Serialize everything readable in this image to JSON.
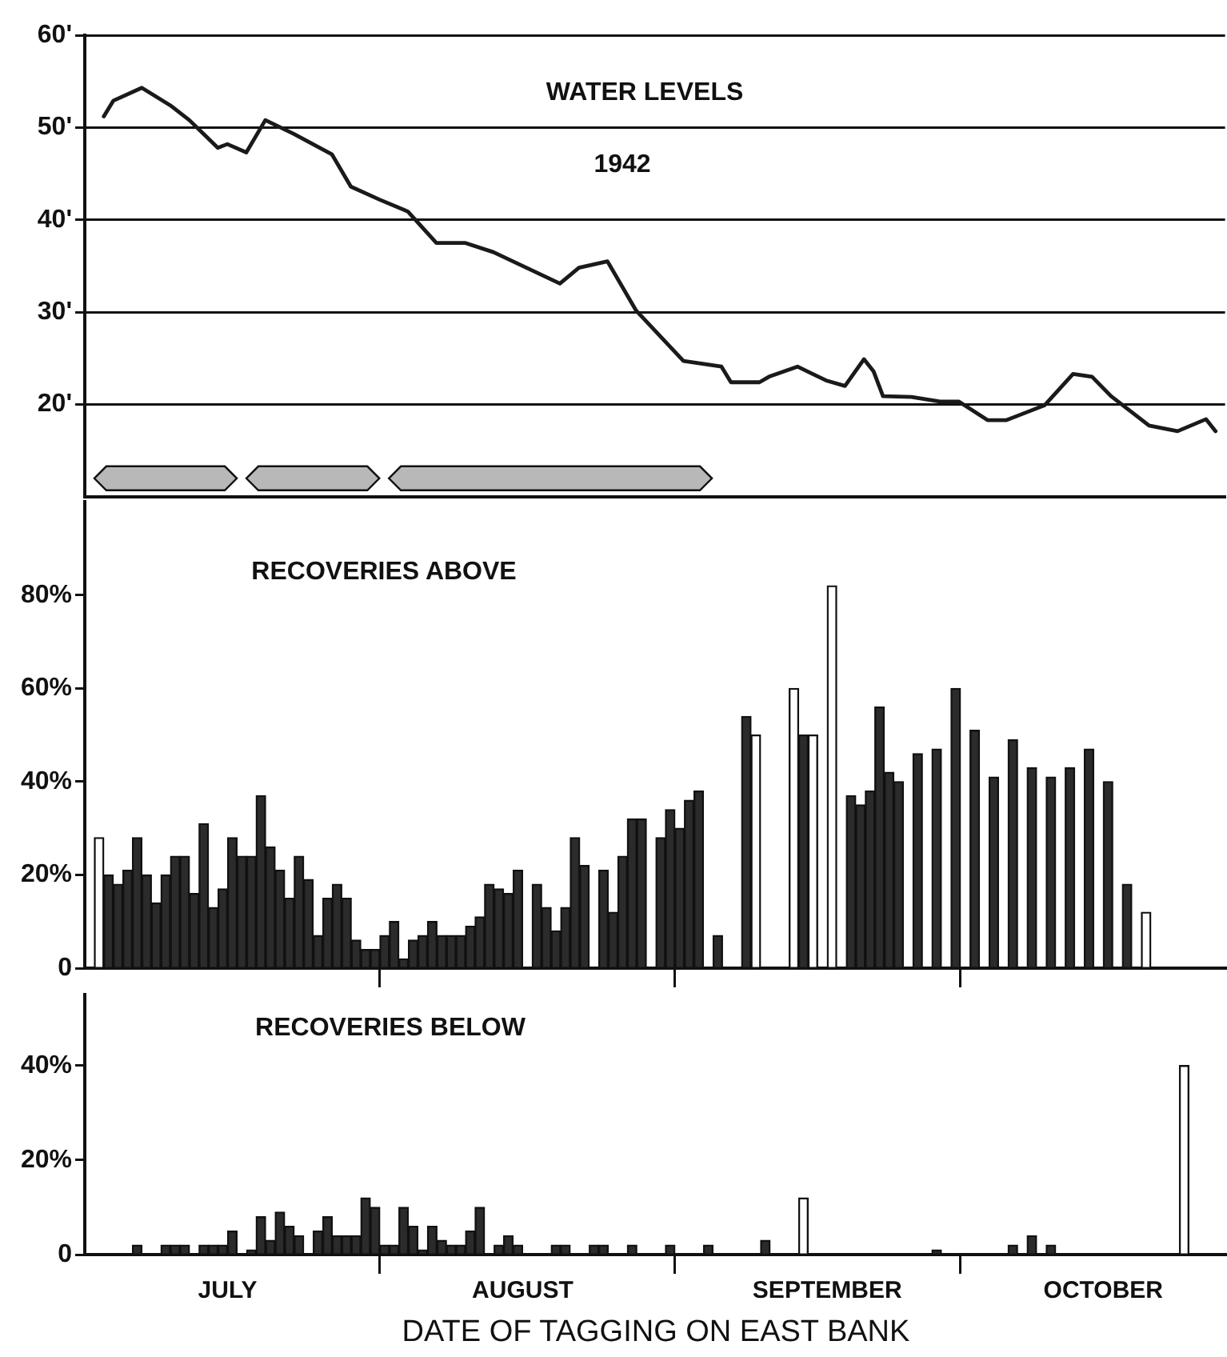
{
  "chart_data": [
    {
      "type": "line",
      "title": "WATER LEVELS",
      "subtitle": "1942",
      "xlim": [
        "--07-01",
        "--10-29"
      ],
      "ylim": [
        10,
        60
      ],
      "yticks": [
        {
          "value": 20,
          "label": "20'"
        },
        {
          "value": 30,
          "label": "30'"
        },
        {
          "value": 40,
          "label": "40'"
        },
        {
          "value": 50,
          "label": "50'"
        },
        {
          "value": 60,
          "label": "60'"
        }
      ],
      "grid": "y",
      "tick_labels": "y",
      "bands": [
        {
          "axis": "x",
          "from": "--07-02",
          "to": "--07-17",
          "color": "#b8b8b8"
        },
        {
          "axis": "x",
          "from": "--07-18",
          "to": "--08-01",
          "color": "#b8b8b8"
        },
        {
          "axis": "x",
          "from": "--08-02",
          "to": "--09-05",
          "color": "#b8b8b8"
        }
      ],
      "series": [
        {
          "color": "#1a1a1a",
          "x": [
            "--07-03",
            "--07-04",
            "--07-07",
            "--07-10",
            "--07-12",
            "--07-15",
            "--07-16",
            "--07-18",
            "--07-20",
            "--07-23",
            "--07-27",
            "--07-29",
            "--08-01",
            "--08-04",
            "--08-07",
            "--08-10",
            "--08-13",
            "--08-20",
            "--08-22",
            "--08-25",
            "--08-28",
            "--09-02",
            "--09-06",
            "--09-07",
            "--09-10",
            "--09-11",
            "--09-14",
            "--09-17",
            "--09-19",
            "--09-21",
            "--09-22",
            "--09-23",
            "--09-26",
            "--09-29",
            "--10-01",
            "--10-04",
            "--10-06",
            "--10-10",
            "--10-13",
            "--10-15",
            "--10-17",
            "--10-21",
            "--10-24",
            "--10-27",
            "--10-28"
          ],
          "values": [
            51.2,
            52.9,
            54.3,
            52.4,
            50.8,
            47.8,
            48.2,
            47.3,
            50.8,
            49.3,
            47.1,
            43.6,
            42.2,
            40.9,
            37.5,
            37.5,
            36.5,
            33.1,
            34.8,
            35.5,
            30.2,
            24.7,
            24.1,
            22.4,
            22.4,
            23.0,
            24.1,
            22.6,
            22.0,
            24.9,
            23.6,
            20.9,
            20.8,
            20.3,
            20.3,
            18.3,
            18.3,
            19.9,
            23.3,
            23.0,
            20.9,
            17.7,
            17.1,
            18.4,
            17.1
          ]
        }
      ]
    },
    {
      "type": "bar",
      "title": "RECOVERIES ABOVE",
      "xlim": [
        "--07-01",
        "--10-29"
      ],
      "ylim": [
        0,
        100
      ],
      "yticks": [
        0,
        {
          "value": 20,
          "label": "20%"
        },
        {
          "value": 40,
          "label": "40%"
        },
        {
          "value": 60,
          "label": "60%"
        },
        {
          "value": 80,
          "label": "80%"
        }
      ],
      "xticks": [
        {
          "value": "--08-01",
          "label": null
        },
        {
          "value": "--09-01",
          "label": null
        },
        {
          "value": "--10-01",
          "label": null
        }
      ],
      "tick_labels": "y",
      "series": [
        {
          "color": "#2b2b2b",
          "x": [
            "--07-03",
            "--07-04",
            "--07-05",
            "--07-06",
            "--07-07",
            "--07-08",
            "--07-09",
            "--07-10",
            "--07-11",
            "--07-12",
            "--07-13",
            "--07-14",
            "--07-15",
            "--07-16",
            "--07-17",
            "--07-18",
            "--07-19",
            "--07-20",
            "--07-21",
            "--07-22",
            "--07-23",
            "--07-24",
            "--07-25",
            "--07-26",
            "--07-27",
            "--07-28",
            "--07-29",
            "--07-30",
            "--07-31",
            "--08-01",
            "--08-02",
            "--08-03",
            "--08-04",
            "--08-05",
            "--08-06",
            "--08-07",
            "--08-08",
            "--08-09",
            "--08-10",
            "--08-11",
            "--08-12",
            "--08-13",
            "--08-14",
            "--08-15",
            "--08-17",
            "--08-18",
            "--08-19",
            "--08-20",
            "--08-21",
            "--08-22",
            "--08-24",
            "--08-25",
            "--08-26",
            "--08-27",
            "--08-28",
            "--08-30",
            "--08-31",
            "--09-01",
            "--09-02",
            "--09-03",
            "--09-05",
            "--09-08",
            "--09-14",
            "--09-19",
            "--09-20",
            "--09-21",
            "--09-22",
            "--09-23",
            "--09-24",
            "--09-26",
            "--09-28",
            "--09-30",
            "--10-02",
            "--10-04",
            "--10-06",
            "--10-08",
            "--10-10",
            "--10-12",
            "--10-14",
            "--10-16",
            "--10-18"
          ],
          "values": [
            20,
            18,
            21,
            28,
            20,
            14,
            20,
            24,
            24,
            16,
            31,
            13,
            17,
            28,
            24,
            24,
            37,
            26,
            21,
            15,
            24,
            19,
            7,
            15,
            18,
            15,
            6,
            4,
            4,
            7,
            10,
            2,
            6,
            7,
            10,
            7,
            7,
            7,
            9,
            11,
            18,
            17,
            16,
            21,
            18,
            13,
            8,
            13,
            28,
            22,
            21,
            12,
            24,
            32,
            32,
            28,
            34,
            30,
            36,
            38,
            7,
            54,
            50,
            37,
            35,
            38,
            56,
            42,
            40,
            46,
            47,
            60,
            51,
            41,
            49,
            43,
            41,
            43,
            47,
            40,
            18
          ]
        },
        {
          "color": "#ffffff",
          "x": [
            "--07-02",
            "--09-09",
            "--09-13",
            "--09-15",
            "--09-17",
            "--10-20"
          ],
          "values": [
            28,
            50,
            60,
            50,
            82,
            12
          ]
        }
      ]
    },
    {
      "type": "bar",
      "title": "RECOVERIES BELOW",
      "xlabel": "DATE OF TAGGING ON EAST BANK",
      "xlim": [
        "--07-01",
        "--10-29"
      ],
      "ylim": [
        0,
        55
      ],
      "yticks": [
        0,
        {
          "value": 20,
          "label": "20%"
        },
        {
          "value": 40,
          "label": "40%"
        }
      ],
      "xticks": [
        {
          "value": "--08-01",
          "label": null
        },
        {
          "value": "--09-01",
          "label": null
        },
        {
          "value": "--10-01",
          "label": null
        },
        {
          "value": "--07-16",
          "label": "JULY"
        },
        {
          "value": "--08-16",
          "label": "AUGUST"
        },
        {
          "value": "--09-17",
          "label": "SEPTEMBER"
        },
        {
          "value": "--10-16",
          "label": "OCTOBER"
        }
      ],
      "series": [
        {
          "color": "#2b2b2b",
          "x": [
            "--07-06",
            "--07-09",
            "--07-10",
            "--07-11",
            "--07-13",
            "--07-14",
            "--07-15",
            "--07-16",
            "--07-18",
            "--07-19",
            "--07-20",
            "--07-21",
            "--07-22",
            "--07-23",
            "--07-25",
            "--07-26",
            "--07-27",
            "--07-28",
            "--07-29",
            "--07-30",
            "--07-31",
            "--08-01",
            "--08-02",
            "--08-03",
            "--08-04",
            "--08-05",
            "--08-06",
            "--08-07",
            "--08-08",
            "--08-09",
            "--08-10",
            "--08-11",
            "--08-13",
            "--08-14",
            "--08-15",
            "--08-19",
            "--08-20",
            "--08-23",
            "--08-24",
            "--08-27",
            "--08-31",
            "--09-04",
            "--09-10",
            "--09-28",
            "--10-06",
            "--10-08",
            "--10-10"
          ],
          "values": [
            2,
            2,
            2,
            2,
            2,
            2,
            2,
            5,
            1,
            8,
            3,
            9,
            6,
            4,
            5,
            8,
            4,
            4,
            4,
            12,
            10,
            2,
            2,
            10,
            6,
            1,
            6,
            3,
            2,
            2,
            5,
            10,
            2,
            4,
            2,
            2,
            2,
            2,
            2,
            2,
            2,
            2,
            3,
            1,
            2,
            4,
            2
          ]
        },
        {
          "color": "#ffffff",
          "x": [
            "--09-14",
            "--10-24"
          ],
          "values": [
            12,
            40
          ]
        }
      ]
    }
  ]
}
